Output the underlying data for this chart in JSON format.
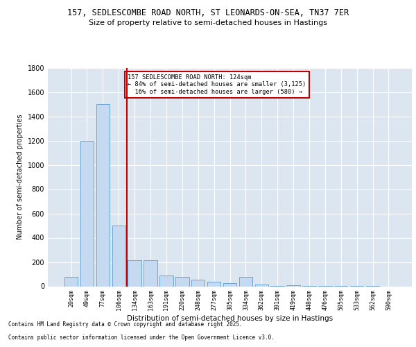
{
  "title1": "157, SEDLESCOMBE ROAD NORTH, ST LEONARDS-ON-SEA, TN37 7ER",
  "title2": "Size of property relative to semi-detached houses in Hastings",
  "xlabel": "Distribution of semi-detached houses by size in Hastings",
  "ylabel": "Number of semi-detached properties",
  "categories": [
    "20sqm",
    "49sqm",
    "77sqm",
    "106sqm",
    "134sqm",
    "163sqm",
    "191sqm",
    "220sqm",
    "248sqm",
    "277sqm",
    "305sqm",
    "334sqm",
    "362sqm",
    "391sqm",
    "419sqm",
    "448sqm",
    "476sqm",
    "505sqm",
    "533sqm",
    "562sqm",
    "590sqm"
  ],
  "values": [
    75,
    1200,
    1500,
    500,
    215,
    215,
    90,
    75,
    55,
    35,
    25,
    80,
    15,
    5,
    8,
    3,
    3,
    2,
    1,
    1,
    0
  ],
  "bar_color": "#c5d9f1",
  "bar_edge_color": "#5b9bd5",
  "vline_color": "#c00000",
  "annotation_title": "157 SEDLESCOMBE ROAD NORTH: 124sqm",
  "annotation_line1": "← 84% of semi-detached houses are smaller (3,125)",
  "annotation_line2": "  16% of semi-detached houses are larger (580) →",
  "annotation_box_color": "#c00000",
  "ylim": [
    0,
    1800
  ],
  "yticks": [
    0,
    200,
    400,
    600,
    800,
    1000,
    1200,
    1400,
    1600,
    1800
  ],
  "footnote1": "Contains HM Land Registry data © Crown copyright and database right 2025.",
  "footnote2": "Contains public sector information licensed under the Open Government Licence v3.0.",
  "plot_bg_color": "#dce6f1",
  "fig_bg_color": "#ffffff"
}
